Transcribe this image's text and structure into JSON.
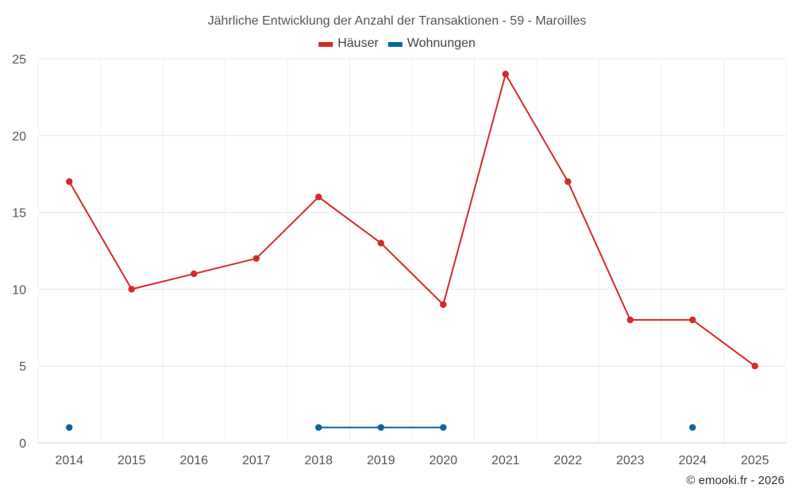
{
  "chart_data": {
    "type": "line",
    "title": "Jährliche Entwicklung der Anzahl der Transaktionen - 59 - Maroilles",
    "categories": [
      "2014",
      "2015",
      "2016",
      "2017",
      "2018",
      "2019",
      "2020",
      "2021",
      "2022",
      "2023",
      "2024",
      "2025"
    ],
    "y_ticks": [
      "0",
      "5",
      "10",
      "15",
      "20",
      "25"
    ],
    "ylim": [
      0,
      25
    ],
    "grid": true,
    "legend_position": "top-center",
    "series": [
      {
        "name": "Häuser",
        "color": "#d42a2a",
        "values": [
          17,
          10,
          11,
          12,
          16,
          13,
          9,
          24,
          17,
          8,
          8,
          5
        ]
      },
      {
        "name": "Wohnungen",
        "color": "#0b64a0",
        "values": [
          1,
          null,
          null,
          null,
          1,
          1,
          1,
          null,
          null,
          null,
          1,
          null
        ]
      }
    ],
    "credit": "© emooki.fr - 2026"
  }
}
